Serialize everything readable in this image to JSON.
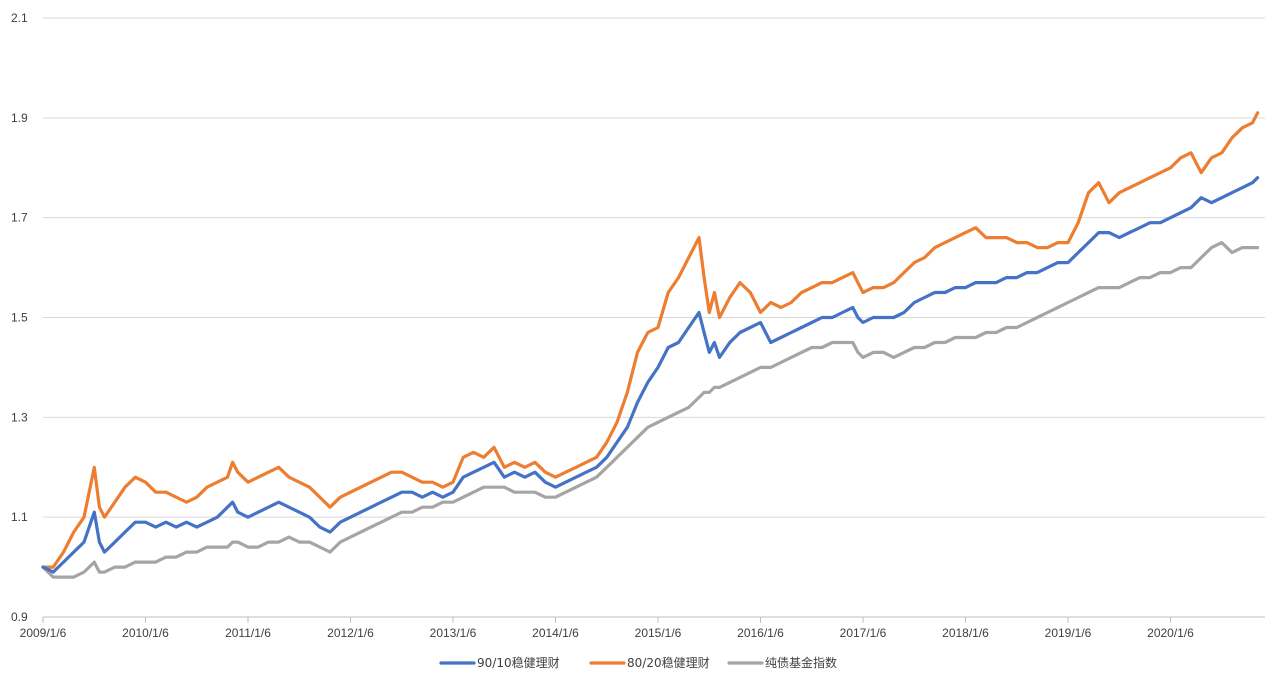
{
  "chart_data": {
    "type": "line",
    "title": "",
    "xlabel": "",
    "ylabel": "",
    "ylim": [
      0.9,
      2.1
    ],
    "y_ticks": [
      0.9,
      1.1,
      1.3,
      1.5,
      1.7,
      1.9,
      2.1
    ],
    "y_tick_labels": [
      "0.9",
      "1.1",
      "1.3",
      "1.5",
      "1.7",
      "1.9",
      "2.1"
    ],
    "x_tick_labels": [
      "2009/1/6",
      "2010/1/6",
      "2011/1/6",
      "2012/1/6",
      "2013/1/6",
      "2014/1/6",
      "2015/1/6",
      "2016/1/6",
      "2017/1/6",
      "2018/1/6",
      "2019/1/6",
      "2020/1/6"
    ],
    "x_range": [
      2009.0,
      2020.85
    ],
    "grid": "horizontal",
    "legend_position": "bottom",
    "series": [
      {
        "name": "90/10稳健理财",
        "color": "#4472C4",
        "x": [
          2009.0,
          2009.1,
          2009.2,
          2009.3,
          2009.4,
          2009.5,
          2009.55,
          2009.6,
          2009.7,
          2009.8,
          2009.9,
          2010.0,
          2010.1,
          2010.2,
          2010.3,
          2010.4,
          2010.5,
          2010.6,
          2010.7,
          2010.8,
          2010.85,
          2010.9,
          2011.0,
          2011.1,
          2011.2,
          2011.3,
          2011.4,
          2011.5,
          2011.6,
          2011.7,
          2011.8,
          2011.9,
          2012.0,
          2012.1,
          2012.2,
          2012.3,
          2012.4,
          2012.5,
          2012.6,
          2012.7,
          2012.8,
          2012.9,
          2013.0,
          2013.1,
          2013.2,
          2013.3,
          2013.4,
          2013.5,
          2013.6,
          2013.7,
          2013.8,
          2013.9,
          2014.0,
          2014.1,
          2014.2,
          2014.3,
          2014.4,
          2014.5,
          2014.6,
          2014.7,
          2014.8,
          2014.9,
          2015.0,
          2015.1,
          2015.2,
          2015.3,
          2015.4,
          2015.45,
          2015.5,
          2015.55,
          2015.6,
          2015.7,
          2015.8,
          2015.9,
          2016.0,
          2016.1,
          2016.2,
          2016.3,
          2016.4,
          2016.5,
          2016.6,
          2016.7,
          2016.8,
          2016.9,
          2016.95,
          2017.0,
          2017.1,
          2017.2,
          2017.3,
          2017.4,
          2017.5,
          2017.6,
          2017.7,
          2017.8,
          2017.9,
          2018.0,
          2018.1,
          2018.2,
          2018.3,
          2018.4,
          2018.5,
          2018.6,
          2018.7,
          2018.8,
          2018.9,
          2019.0,
          2019.1,
          2019.2,
          2019.3,
          2019.4,
          2019.5,
          2019.6,
          2019.7,
          2019.8,
          2019.9,
          2020.0,
          2020.1,
          2020.2,
          2020.3,
          2020.4,
          2020.5,
          2020.6,
          2020.7,
          2020.8,
          2020.85
        ],
        "y": [
          1.0,
          0.99,
          1.01,
          1.03,
          1.05,
          1.11,
          1.05,
          1.03,
          1.05,
          1.07,
          1.09,
          1.09,
          1.08,
          1.09,
          1.08,
          1.09,
          1.08,
          1.09,
          1.1,
          1.12,
          1.13,
          1.11,
          1.1,
          1.11,
          1.12,
          1.13,
          1.12,
          1.11,
          1.1,
          1.08,
          1.07,
          1.09,
          1.1,
          1.11,
          1.12,
          1.13,
          1.14,
          1.15,
          1.15,
          1.14,
          1.15,
          1.14,
          1.15,
          1.18,
          1.19,
          1.2,
          1.21,
          1.18,
          1.19,
          1.18,
          1.19,
          1.17,
          1.16,
          1.17,
          1.18,
          1.19,
          1.2,
          1.22,
          1.25,
          1.28,
          1.33,
          1.37,
          1.4,
          1.44,
          1.45,
          1.48,
          1.51,
          1.47,
          1.43,
          1.45,
          1.42,
          1.45,
          1.47,
          1.48,
          1.49,
          1.45,
          1.46,
          1.47,
          1.48,
          1.49,
          1.5,
          1.5,
          1.51,
          1.52,
          1.5,
          1.49,
          1.5,
          1.5,
          1.5,
          1.51,
          1.53,
          1.54,
          1.55,
          1.55,
          1.56,
          1.56,
          1.57,
          1.57,
          1.57,
          1.58,
          1.58,
          1.59,
          1.59,
          1.6,
          1.61,
          1.61,
          1.63,
          1.65,
          1.67,
          1.67,
          1.66,
          1.67,
          1.68,
          1.69,
          1.69,
          1.7,
          1.71,
          1.72,
          1.74,
          1.73,
          1.74,
          1.75,
          1.76,
          1.77,
          1.78
        ]
      },
      {
        "name": "80/20稳健理财",
        "color": "#ED7D31",
        "x": [
          2009.0,
          2009.1,
          2009.2,
          2009.3,
          2009.4,
          2009.5,
          2009.55,
          2009.6,
          2009.7,
          2009.8,
          2009.9,
          2010.0,
          2010.1,
          2010.2,
          2010.3,
          2010.4,
          2010.5,
          2010.6,
          2010.7,
          2010.8,
          2010.85,
          2010.9,
          2011.0,
          2011.1,
          2011.2,
          2011.3,
          2011.4,
          2011.5,
          2011.6,
          2011.7,
          2011.8,
          2011.9,
          2012.0,
          2012.1,
          2012.2,
          2012.3,
          2012.4,
          2012.5,
          2012.6,
          2012.7,
          2012.8,
          2012.9,
          2013.0,
          2013.1,
          2013.2,
          2013.3,
          2013.4,
          2013.5,
          2013.6,
          2013.7,
          2013.8,
          2013.9,
          2014.0,
          2014.1,
          2014.2,
          2014.3,
          2014.4,
          2014.5,
          2014.6,
          2014.7,
          2014.8,
          2014.9,
          2015.0,
          2015.1,
          2015.2,
          2015.3,
          2015.4,
          2015.45,
          2015.5,
          2015.55,
          2015.6,
          2015.7,
          2015.8,
          2015.9,
          2016.0,
          2016.1,
          2016.2,
          2016.3,
          2016.4,
          2016.5,
          2016.6,
          2016.7,
          2016.8,
          2016.9,
          2016.95,
          2017.0,
          2017.1,
          2017.2,
          2017.3,
          2017.4,
          2017.5,
          2017.6,
          2017.7,
          2017.8,
          2017.9,
          2018.0,
          2018.1,
          2018.2,
          2018.3,
          2018.4,
          2018.5,
          2018.6,
          2018.7,
          2018.8,
          2018.9,
          2019.0,
          2019.1,
          2019.2,
          2019.3,
          2019.4,
          2019.5,
          2019.6,
          2019.7,
          2019.8,
          2019.9,
          2020.0,
          2020.1,
          2020.2,
          2020.3,
          2020.4,
          2020.5,
          2020.6,
          2020.7,
          2020.8,
          2020.85
        ],
        "y": [
          1.0,
          1.0,
          1.03,
          1.07,
          1.1,
          1.2,
          1.12,
          1.1,
          1.13,
          1.16,
          1.18,
          1.17,
          1.15,
          1.15,
          1.14,
          1.13,
          1.14,
          1.16,
          1.17,
          1.18,
          1.21,
          1.19,
          1.17,
          1.18,
          1.19,
          1.2,
          1.18,
          1.17,
          1.16,
          1.14,
          1.12,
          1.14,
          1.15,
          1.16,
          1.17,
          1.18,
          1.19,
          1.19,
          1.18,
          1.17,
          1.17,
          1.16,
          1.17,
          1.22,
          1.23,
          1.22,
          1.24,
          1.2,
          1.21,
          1.2,
          1.21,
          1.19,
          1.18,
          1.19,
          1.2,
          1.21,
          1.22,
          1.25,
          1.29,
          1.35,
          1.43,
          1.47,
          1.48,
          1.55,
          1.58,
          1.62,
          1.66,
          1.58,
          1.51,
          1.55,
          1.5,
          1.54,
          1.57,
          1.55,
          1.51,
          1.53,
          1.52,
          1.53,
          1.55,
          1.56,
          1.57,
          1.57,
          1.58,
          1.59,
          1.57,
          1.55,
          1.56,
          1.56,
          1.57,
          1.59,
          1.61,
          1.62,
          1.64,
          1.65,
          1.66,
          1.67,
          1.68,
          1.66,
          1.66,
          1.66,
          1.65,
          1.65,
          1.64,
          1.64,
          1.65,
          1.65,
          1.69,
          1.75,
          1.77,
          1.73,
          1.75,
          1.76,
          1.77,
          1.78,
          1.79,
          1.8,
          1.82,
          1.83,
          1.79,
          1.82,
          1.83,
          1.86,
          1.88,
          1.89,
          1.91
        ]
      },
      {
        "name": "纯债基金指数",
        "color": "#A5A5A5",
        "x": [
          2009.0,
          2009.1,
          2009.2,
          2009.3,
          2009.4,
          2009.5,
          2009.55,
          2009.6,
          2009.7,
          2009.8,
          2009.9,
          2010.0,
          2010.1,
          2010.2,
          2010.3,
          2010.4,
          2010.5,
          2010.6,
          2010.7,
          2010.8,
          2010.85,
          2010.9,
          2011.0,
          2011.1,
          2011.2,
          2011.3,
          2011.4,
          2011.5,
          2011.6,
          2011.7,
          2011.8,
          2011.9,
          2012.0,
          2012.1,
          2012.2,
          2012.3,
          2012.4,
          2012.5,
          2012.6,
          2012.7,
          2012.8,
          2012.9,
          2013.0,
          2013.1,
          2013.2,
          2013.3,
          2013.4,
          2013.5,
          2013.6,
          2013.7,
          2013.8,
          2013.9,
          2014.0,
          2014.1,
          2014.2,
          2014.3,
          2014.4,
          2014.5,
          2014.6,
          2014.7,
          2014.8,
          2014.9,
          2015.0,
          2015.1,
          2015.2,
          2015.3,
          2015.4,
          2015.45,
          2015.5,
          2015.55,
          2015.6,
          2015.7,
          2015.8,
          2015.9,
          2016.0,
          2016.1,
          2016.2,
          2016.3,
          2016.4,
          2016.5,
          2016.6,
          2016.7,
          2016.8,
          2016.9,
          2016.95,
          2017.0,
          2017.1,
          2017.2,
          2017.3,
          2017.4,
          2017.5,
          2017.6,
          2017.7,
          2017.8,
          2017.9,
          2018.0,
          2018.1,
          2018.2,
          2018.3,
          2018.4,
          2018.5,
          2018.6,
          2018.7,
          2018.8,
          2018.9,
          2019.0,
          2019.1,
          2019.2,
          2019.3,
          2019.4,
          2019.5,
          2019.6,
          2019.7,
          2019.8,
          2019.9,
          2020.0,
          2020.1,
          2020.2,
          2020.3,
          2020.4,
          2020.5,
          2020.6,
          2020.7,
          2020.8,
          2020.85
        ],
        "y": [
          1.0,
          0.98,
          0.98,
          0.98,
          0.99,
          1.01,
          0.99,
          0.99,
          1.0,
          1.0,
          1.01,
          1.01,
          1.01,
          1.02,
          1.02,
          1.03,
          1.03,
          1.04,
          1.04,
          1.04,
          1.05,
          1.05,
          1.04,
          1.04,
          1.05,
          1.05,
          1.06,
          1.05,
          1.05,
          1.04,
          1.03,
          1.05,
          1.06,
          1.07,
          1.08,
          1.09,
          1.1,
          1.11,
          1.11,
          1.12,
          1.12,
          1.13,
          1.13,
          1.14,
          1.15,
          1.16,
          1.16,
          1.16,
          1.15,
          1.15,
          1.15,
          1.14,
          1.14,
          1.15,
          1.16,
          1.17,
          1.18,
          1.2,
          1.22,
          1.24,
          1.26,
          1.28,
          1.29,
          1.3,
          1.31,
          1.32,
          1.34,
          1.35,
          1.35,
          1.36,
          1.36,
          1.37,
          1.38,
          1.39,
          1.4,
          1.4,
          1.41,
          1.42,
          1.43,
          1.44,
          1.44,
          1.45,
          1.45,
          1.45,
          1.43,
          1.42,
          1.43,
          1.43,
          1.42,
          1.43,
          1.44,
          1.44,
          1.45,
          1.45,
          1.46,
          1.46,
          1.46,
          1.47,
          1.47,
          1.48,
          1.48,
          1.49,
          1.5,
          1.51,
          1.52,
          1.53,
          1.54,
          1.55,
          1.56,
          1.56,
          1.56,
          1.57,
          1.58,
          1.58,
          1.59,
          1.59,
          1.6,
          1.6,
          1.62,
          1.64,
          1.65,
          1.63,
          1.64,
          1.64,
          1.64
        ]
      }
    ]
  }
}
